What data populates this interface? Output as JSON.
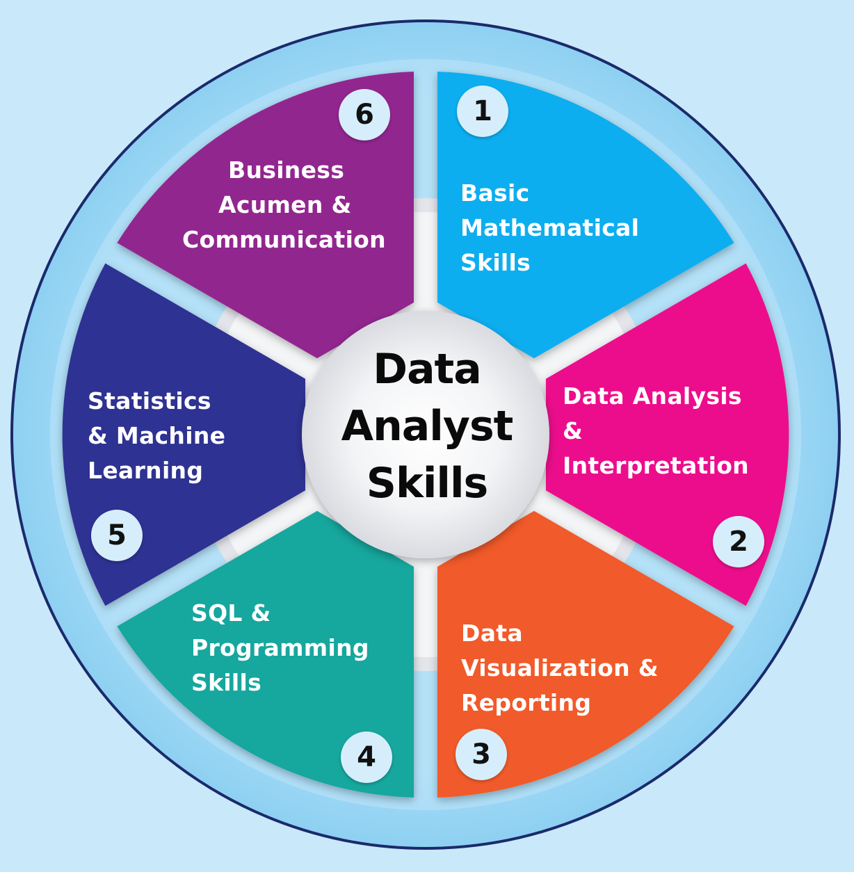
{
  "center": {
    "lines": [
      "Data",
      "Analyst",
      "Skills"
    ]
  },
  "skills": [
    {
      "number": "1",
      "lines": [
        "Basic",
        "Mathematical",
        "Skills"
      ],
      "color": "#0daeef"
    },
    {
      "number": "2",
      "lines": [
        "Data Analysis",
        "&",
        "Interpretation"
      ],
      "color": "#ec0a8c"
    },
    {
      "number": "3",
      "lines": [
        "Data",
        "Visualization &",
        "Reporting"
      ],
      "color": "#f15a2b"
    },
    {
      "number": "4",
      "lines": [
        "SQL &",
        "Programming",
        "Skills"
      ],
      "color": "#16a79e"
    },
    {
      "number": "5",
      "lines": [
        "Statistics",
        "& Machine",
        "Learning"
      ],
      "color": "#2e3192"
    },
    {
      "number": "6",
      "lines": [
        "Business",
        "Acumen &",
        "Communication"
      ],
      "color": "#92278f"
    }
  ],
  "colors": {
    "background": "#c9e9fb",
    "outer_ring": "#8fd3f4",
    "ring_border": "#1b2a6b",
    "hub": "#f1f2f4"
  }
}
